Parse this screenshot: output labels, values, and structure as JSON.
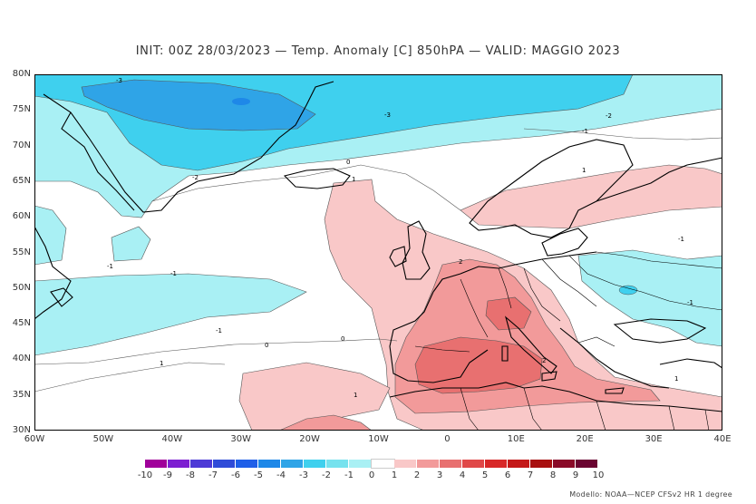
{
  "title": "INIT: 00Z 28/03/2023 — Temp. Anomaly [C] 850hPA — VALID: MAGGIO 2023",
  "map": {
    "lat_labels": [
      "80N",
      "75N",
      "70N",
      "65N",
      "60N",
      "55N",
      "50N",
      "45N",
      "40N",
      "35N",
      "30N"
    ],
    "lon_labels": [
      "60W",
      "50W",
      "40W",
      "30W",
      "20W",
      "10W",
      "0",
      "10E",
      "20E",
      "30E",
      "40E"
    ],
    "contour_labels": [
      "-3",
      "-3",
      "-2",
      "-2",
      "-1",
      "-1",
      "-1",
      "-1",
      "-1",
      "-1",
      "0",
      "0",
      "0",
      "1",
      "1",
      "1",
      "1",
      "2",
      "2",
      "1"
    ],
    "colors": {
      "neg3": "#2fa4e7",
      "neg2": "#3fd0ee",
      "neg1": "#a9f0f4",
      "zero": "#ffffff",
      "pos1": "#f9c8c8",
      "pos2": "#f29a9a",
      "pos3": "#e87070",
      "land": "#000000"
    }
  },
  "legend": {
    "values": [
      "-10",
      "-9",
      "-8",
      "-7",
      "-6",
      "-5",
      "-4",
      "-3",
      "-2",
      "-1",
      "0",
      "1",
      "2",
      "3",
      "4",
      "5",
      "6",
      "7",
      "8",
      "9",
      "10"
    ],
    "colors": [
      "#a0009a",
      "#7d1fd1",
      "#4d3ad6",
      "#2f4bd8",
      "#1f5fe8",
      "#1e88e8",
      "#2fa4e7",
      "#3fd0ee",
      "#76e2ee",
      "#a9f0f4",
      "#ffffff",
      "#f9c8c8",
      "#f29a9a",
      "#e87070",
      "#e04848",
      "#d82828",
      "#c41818",
      "#a81010",
      "#8a0a28",
      "#6a0430"
    ]
  },
  "footer": "Modello: NOAA—NCEP CFSv2 HR 1 degree"
}
